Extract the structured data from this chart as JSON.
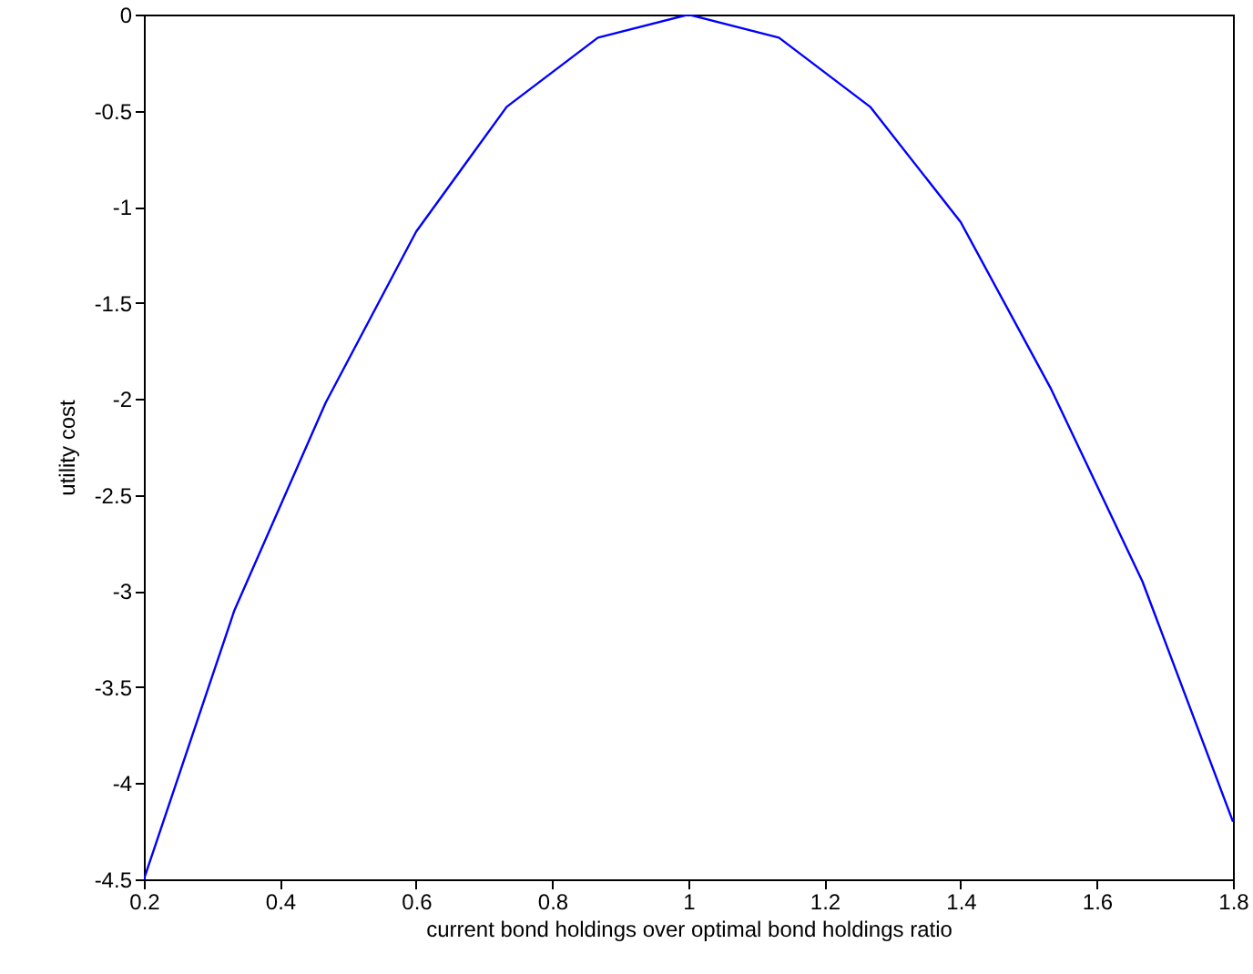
{
  "chart_data": {
    "type": "line",
    "xlabel": "current bond holdings over optimal bond holdings ratio",
    "ylabel": "utility cost",
    "x": [
      0.2,
      0.333,
      0.467,
      0.6,
      0.733,
      0.867,
      1,
      1.133,
      1.267,
      1.4,
      1.533,
      1.667,
      1.8
    ],
    "series": [
      {
        "color": "#0000ff",
        "values": [
          -4.5,
          -3.1,
          -2.02,
          -1.13,
          -0.48,
          -0.12,
          0,
          -0.12,
          -0.48,
          -1.08,
          -1.95,
          -2.95,
          -4.2
        ]
      }
    ],
    "xlim": [
      0.2,
      1.8
    ],
    "xticks": [
      0.2,
      0.4,
      0.6,
      0.8,
      1,
      1.2,
      1.4,
      1.6,
      1.8
    ],
    "ylim": [
      -4.5,
      0
    ],
    "yticks": [
      -4.5,
      -4,
      -3.5,
      -3,
      -2.5,
      -2,
      -1.5,
      -1,
      -0.5,
      0
    ],
    "grid": false
  }
}
